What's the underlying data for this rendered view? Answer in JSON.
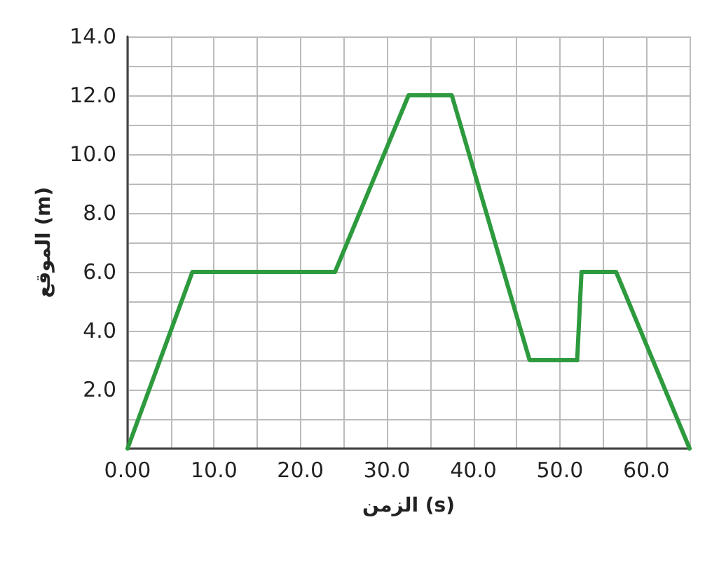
{
  "chart_data": {
    "type": "line",
    "xlabel": "الزمن (s)",
    "ylabel": "الموقع (m)",
    "x": [
      0,
      7.5,
      24,
      32.5,
      37.5,
      46.5,
      52,
      52.5,
      56.5,
      65
    ],
    "series": [
      {
        "color": "#2e9a3e",
        "values": [
          0,
          6,
          6,
          12,
          12,
          3,
          3,
          6,
          6,
          0
        ]
      }
    ],
    "xlim": [
      0,
      65
    ],
    "xticks": [
      {
        "value": 0,
        "label": "0.00"
      },
      {
        "value": 5,
        "label": null
      },
      {
        "value": 10,
        "label": "10.0"
      },
      {
        "value": 15,
        "label": null
      },
      {
        "value": 20,
        "label": "20.0"
      },
      {
        "value": 25,
        "label": null
      },
      {
        "value": 30,
        "label": "30.0"
      },
      {
        "value": 35,
        "label": null
      },
      {
        "value": 40,
        "label": "40.0"
      },
      {
        "value": 45,
        "label": null
      },
      {
        "value": 50,
        "label": "50.0"
      },
      {
        "value": 55,
        "label": null
      },
      {
        "value": 60,
        "label": "60.0"
      },
      {
        "value": 65,
        "label": null
      }
    ],
    "ylim": [
      0,
      14
    ],
    "yticks": [
      {
        "value": 0,
        "label": null
      },
      {
        "value": 1,
        "label": null
      },
      {
        "value": 2,
        "label": "2.0"
      },
      {
        "value": 3,
        "label": null
      },
      {
        "value": 4,
        "label": "4.0"
      },
      {
        "value": 5,
        "label": null
      },
      {
        "value": 6,
        "label": "6.0"
      },
      {
        "value": 7,
        "label": null
      },
      {
        "value": 8,
        "label": "8.0"
      },
      {
        "value": 9,
        "label": null
      },
      {
        "value": 10,
        "label": "10.0"
      },
      {
        "value": 11,
        "label": null
      },
      {
        "value": 12,
        "label": "12.0"
      },
      {
        "value": 13,
        "label": null
      },
      {
        "value": 14,
        "label": "14.0"
      }
    ],
    "grid": true,
    "marker": "none",
    "line_style": "solid"
  }
}
